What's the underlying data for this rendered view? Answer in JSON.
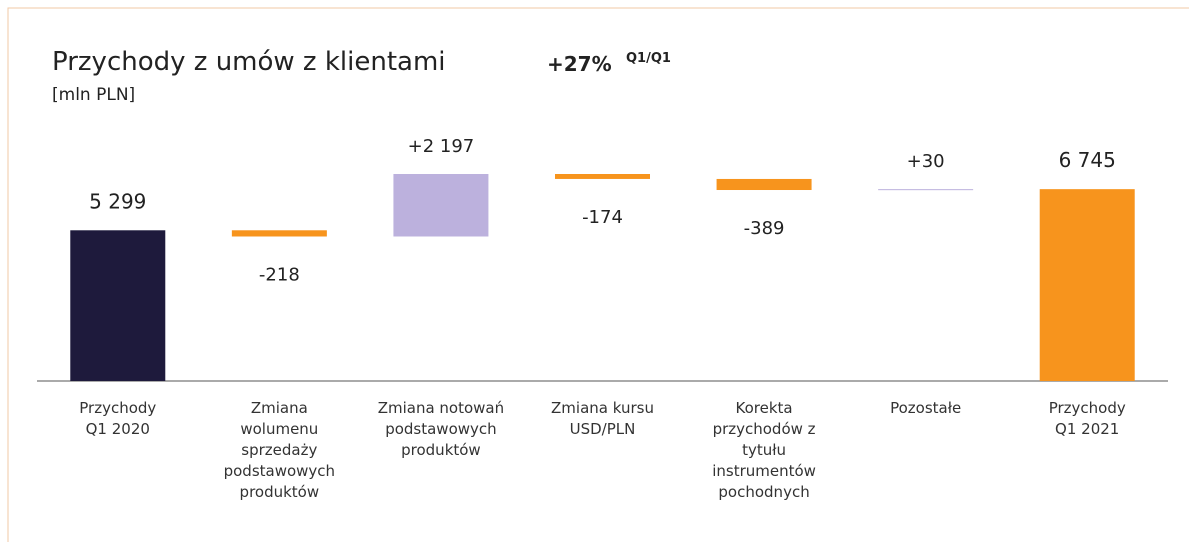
{
  "chart_data": {
    "type": "waterfall",
    "title": "Przychody z umów z klientami",
    "subtitle": "[mln PLN]",
    "growth": "+27%",
    "growth_note": "Q1/Q1",
    "categories": [
      "Przychody\nQ1 2020",
      "Zmiana\nwolumenu\nsprzedaży\npodstawowych\nproduktów",
      "Zmiana notowań\npodstawowych\nproduktów",
      "Zmiana kursu\nUSD/PLN",
      "Korekta\nprzychodów z\ntytułu\ninstrumentów\npochodnych",
      "Pozostałe",
      "Przychody\nQ1 2021"
    ],
    "values": [
      5299,
      -218,
      2197,
      -174,
      -389,
      30,
      6745
    ],
    "value_labels": [
      "5 299",
      "-218",
      "+2 197",
      "-174",
      "-389",
      "+30",
      "6 745"
    ],
    "measures": [
      "total",
      "relative",
      "relative",
      "relative",
      "relative",
      "relative",
      "total"
    ],
    "colors": [
      "#1e1a3c",
      "#f7941d",
      "#bcb1dd",
      "#f7941d",
      "#f7941d",
      "#bcb1dd",
      "#f7941d"
    ]
  }
}
